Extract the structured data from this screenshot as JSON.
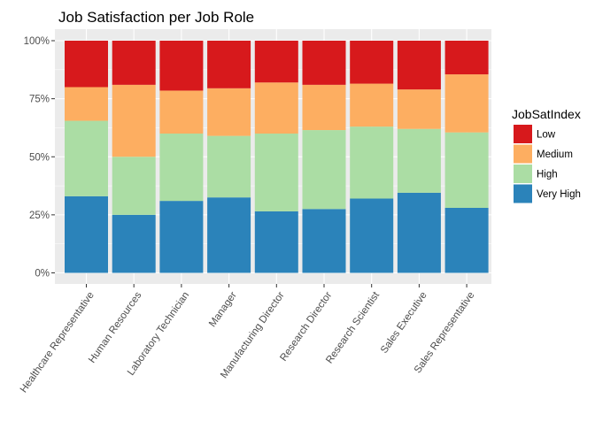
{
  "chart_data": {
    "type": "bar",
    "stacked": "percent",
    "title": "Job Satisfaction per Job Role",
    "xlabel": "",
    "ylabel": "",
    "ylim": [
      0,
      1
    ],
    "grid": true,
    "legend_position": "right",
    "y_ticks": [
      {
        "value": 0,
        "label": "0%"
      },
      {
        "value": 0.25,
        "label": "25%"
      },
      {
        "value": 0.5,
        "label": "50%"
      },
      {
        "value": 0.75,
        "label": "75%"
      },
      {
        "value": 1.0,
        "label": "100%"
      }
    ],
    "categories": [
      "Healthcare Representative",
      "Human Resources",
      "Laboratory Technician",
      "Manager",
      "Manufacturing Director",
      "Research Director",
      "Research Scientist",
      "Sales Executive",
      "Sales Representative"
    ],
    "legend_title": "JobSatIndex",
    "series": [
      {
        "name": "Low",
        "color": "#d7191c",
        "values": [
          0.2,
          0.19,
          0.215,
          0.205,
          0.18,
          0.19,
          0.185,
          0.21,
          0.145
        ]
      },
      {
        "name": "Medium",
        "color": "#fdae61",
        "values": [
          0.145,
          0.31,
          0.185,
          0.205,
          0.22,
          0.195,
          0.185,
          0.17,
          0.25
        ]
      },
      {
        "name": "High",
        "color": "#abdda4",
        "values": [
          0.325,
          0.25,
          0.29,
          0.265,
          0.335,
          0.34,
          0.31,
          0.275,
          0.325
        ]
      },
      {
        "name": "Very High",
        "color": "#2b83ba",
        "values": [
          0.33,
          0.25,
          0.31,
          0.325,
          0.265,
          0.275,
          0.32,
          0.345,
          0.28
        ]
      }
    ],
    "panel_background": "#ebebeb",
    "gridline_color": "#ffffff"
  }
}
